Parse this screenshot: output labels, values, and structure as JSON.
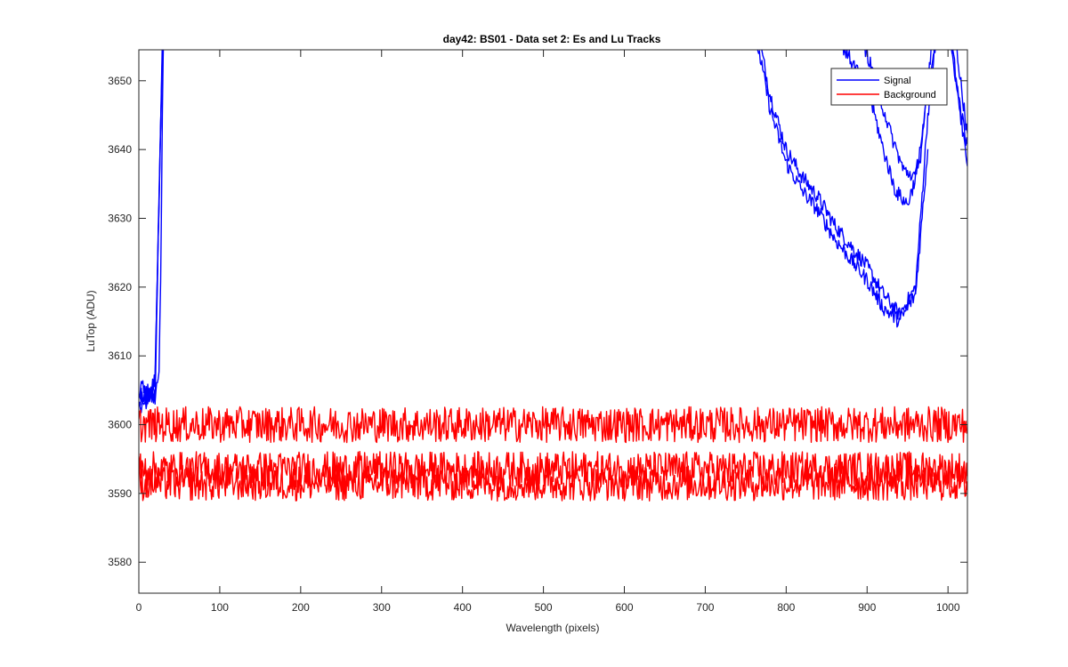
{
  "chart_data": {
    "type": "line",
    "title": "day42: BS01 - Data set 2: Es and Lu Tracks",
    "xlabel": "Wavelength (pixels)",
    "ylabel": "LuTop (ADU)",
    "xlim": [
      0,
      1024
    ],
    "ylim": [
      3575.5,
      3654.5
    ],
    "xticks": [
      0,
      100,
      200,
      300,
      400,
      500,
      600,
      700,
      800,
      900,
      1000
    ],
    "yticks": [
      3580,
      3590,
      3600,
      3610,
      3620,
      3630,
      3640,
      3650
    ],
    "grid": false,
    "legend": {
      "location": "top-right",
      "entries": [
        "Signal",
        "Background"
      ]
    },
    "colors": {
      "Signal": "#0000ff",
      "Background": "#ff0000"
    },
    "series": [
      {
        "name": "Signal",
        "description_points": "track 1",
        "x": [
          0,
          5,
          10,
          15,
          20,
          25,
          27,
          29,
          31,
          760,
          780,
          800,
          820,
          840,
          860,
          880,
          900,
          920,
          940,
          960,
          975,
          990,
          1005,
          1024
        ],
        "y": [
          3604,
          3606,
          3603,
          3605,
          3604,
          3608,
          3620,
          3645,
          3660,
          3660,
          3648,
          3640,
          3636,
          3633,
          3629,
          3626,
          3623,
          3619,
          3616,
          3620,
          3645,
          3662,
          3660,
          3642
        ]
      },
      {
        "x": [
          0,
          10,
          20,
          30,
          760,
          780,
          800,
          820,
          840,
          860,
          880,
          900,
          920,
          940,
          960,
          975
        ],
        "y": [
          3602,
          3604,
          3606,
          3660,
          3658,
          3646,
          3638,
          3634,
          3631,
          3627,
          3624,
          3621,
          3617,
          3615,
          3619,
          3640
        ]
      },
      {
        "x": [
          0,
          10,
          20,
          30,
          850,
          870,
          890,
          905,
          920,
          935,
          950,
          965,
          980,
          995,
          1010,
          1024
        ],
        "y": [
          3605,
          3603,
          3607,
          3660,
          3660,
          3655,
          3651,
          3647,
          3640,
          3634,
          3632,
          3638,
          3655,
          3662,
          3650,
          3640
        ]
      },
      {
        "x": [
          0,
          10,
          20,
          30,
          880,
          900,
          915,
          930,
          945,
          960,
          975,
          990,
          1005,
          1024
        ],
        "y": [
          3603,
          3605,
          3604,
          3660,
          3660,
          3654,
          3648,
          3642,
          3637,
          3636,
          3648,
          3660,
          3655,
          3637
        ]
      },
      {
        "name": "Background",
        "x": [
          0,
          1024
        ],
        "y": [
          3600,
          3600
        ]
      },
      {
        "x": [
          0,
          1024
        ],
        "y": [
          3593.5,
          3593.5
        ]
      },
      {
        "x": [
          0,
          1024
        ],
        "y": [
          3591.5,
          3591.5
        ]
      }
    ]
  }
}
